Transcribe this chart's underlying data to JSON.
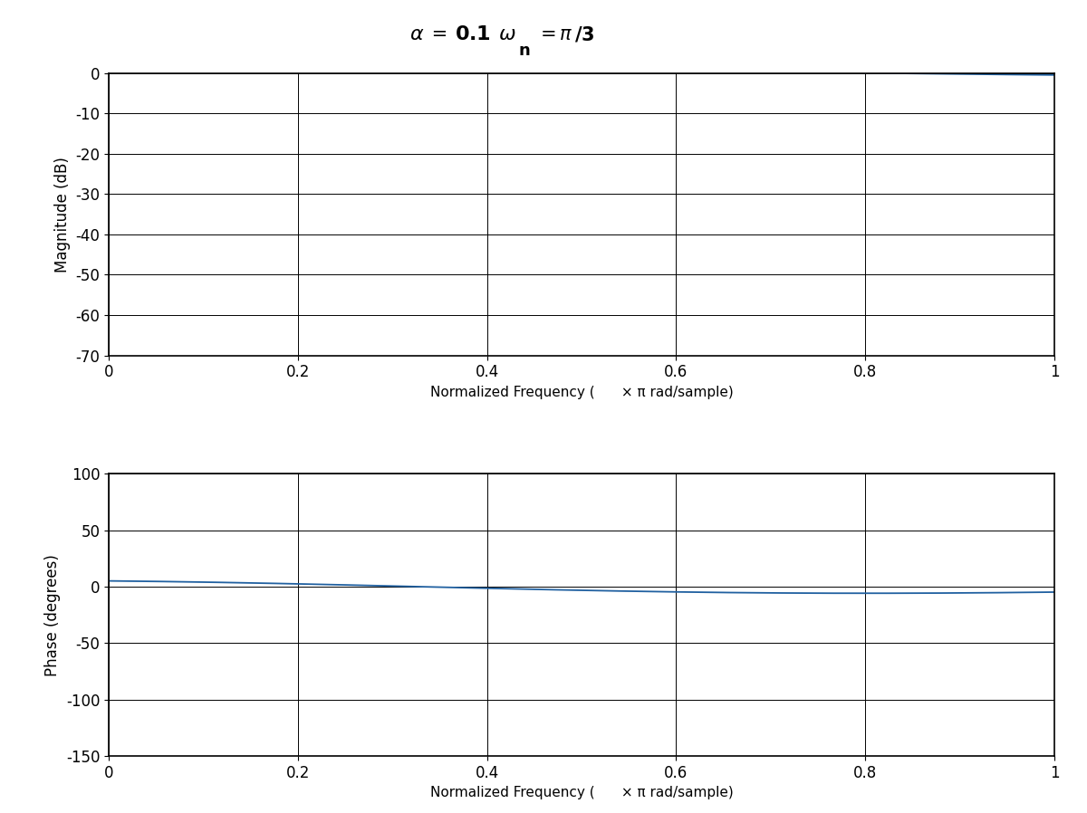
{
  "alpha": 0.1,
  "omega_n_factor": 0.3333333333333333,
  "ylabel_mag": "Magnitude (dB)",
  "ylabel_phase": "Phase (degrees)",
  "xlabel": "Normalized Frequency (      × π rad/sample)",
  "mag_ylim": [
    -70,
    0
  ],
  "mag_yticks": [
    0,
    -10,
    -20,
    -30,
    -40,
    -50,
    -60,
    -70
  ],
  "phase_ylim": [
    -150,
    100
  ],
  "phase_yticks": [
    100,
    50,
    0,
    -50,
    -100,
    -150
  ],
  "xlim": [
    0,
    1
  ],
  "xticks": [
    0,
    0.2,
    0.4,
    0.6,
    0.8,
    1.0
  ],
  "xticklabels": [
    "0",
    "0.2",
    "0.4",
    "0.6",
    "0.8",
    "1"
  ],
  "line_color": "#2060a0",
  "bg_color": "#ffffff",
  "nfft": 8192
}
